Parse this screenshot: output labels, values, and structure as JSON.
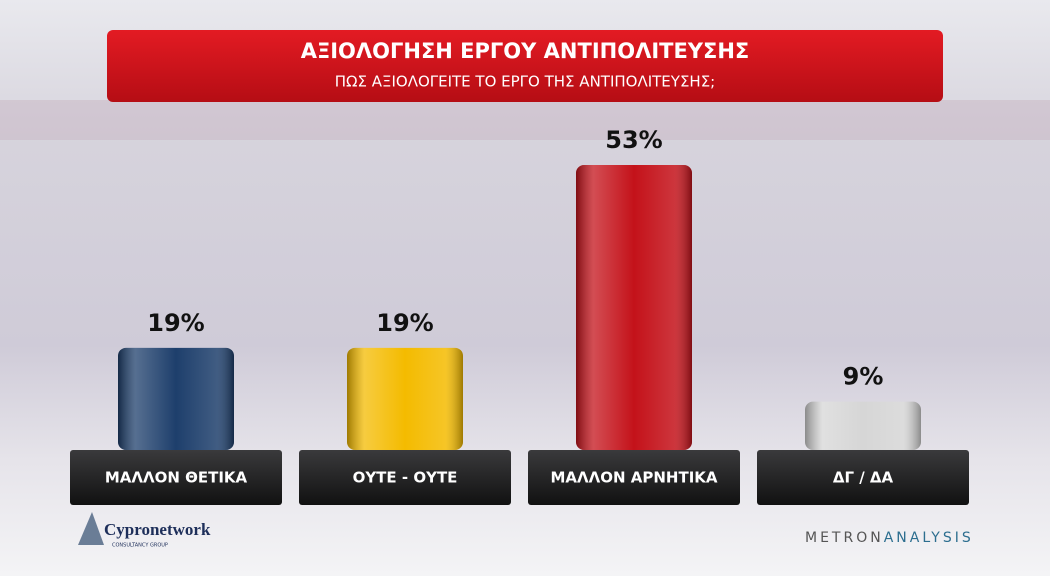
{
  "chart_data": {
    "type": "bar",
    "title": "ΑΞΙΟΛΟΓΗΣΗ ΕΡΓΟΥ ΑΝΤΙΠΟΛΙΤΕΥΣΗΣ",
    "subtitle": "ΠΩΣ ΑΞΙΟΛΟΓΕΙΤΕ ΤΟ ΕΡΓΟ ΤΗΣ ΑΝΤΙΠΟΛΙΤΕΥΣΗΣ;",
    "categories": [
      "ΜΑΛΛΟΝ ΘΕΤΙΚΑ",
      "ΟΥΤΕ - ΟΥΤΕ",
      "ΜΑΛΛΟΝ ΑΡΝΗΤΙΚΑ",
      "ΔΓ / ΔΑ"
    ],
    "values": [
      19,
      19,
      53,
      9
    ],
    "value_labels": [
      "19%",
      "19%",
      "53%",
      "9%"
    ],
    "colors": [
      "#1e3f6c",
      "#f4bb00",
      "#c4121a",
      "#d6d6d6"
    ]
  },
  "branding": {
    "left": "Cypronetwork",
    "left_sub": "CONSULTANCY GROUP",
    "right_a": "METRON",
    "right_b": "ANALYSIS"
  }
}
